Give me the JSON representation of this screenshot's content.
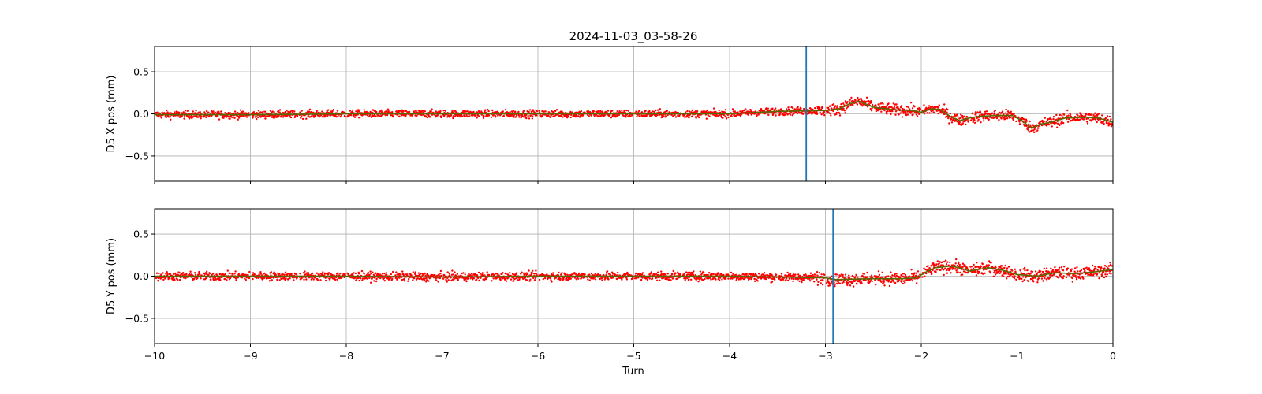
{
  "chart_data": {
    "type": "scatter",
    "title": "2024-11-03_03-58-26",
    "xlabel": "Turn",
    "xlim": [
      -10,
      0
    ],
    "x_ticks": [
      -10,
      -9,
      -8,
      -7,
      -6,
      -5,
      -4,
      -3,
      -2,
      -1,
      0
    ],
    "x_tick_labels": [
      "−10",
      "−9",
      "−8",
      "−7",
      "−6",
      "−5",
      "−4",
      "−3",
      "−2",
      "−1",
      "0"
    ],
    "grid": true,
    "colors": {
      "scatter": "#ff0000",
      "trend": "#556b00",
      "marker_line": "#1f77b4",
      "grid": "#b0b0b0"
    },
    "panels": [
      {
        "ylabel": "D5 X pos (mm)",
        "ylim": [
          -0.8,
          0.8
        ],
        "y_ticks": [
          0.5,
          0.0,
          -0.5
        ],
        "y_tick_labels": [
          "0.5",
          "0.0",
          "−0.5"
        ],
        "vline_x": -3.2,
        "noise": 0.045,
        "trend": [
          [
            -10,
            -0.01
          ],
          [
            -9,
            -0.01
          ],
          [
            -8,
            0.0
          ],
          [
            -7,
            0.0
          ],
          [
            -6,
            0.0
          ],
          [
            -5,
            0.0
          ],
          [
            -4,
            0.0
          ],
          [
            -3.5,
            0.03
          ],
          [
            -3.0,
            0.04
          ],
          [
            -2.85,
            0.06
          ],
          [
            -2.75,
            0.12
          ],
          [
            -2.65,
            0.15
          ],
          [
            -2.5,
            0.08
          ],
          [
            -2.3,
            0.05
          ],
          [
            -2.1,
            0.04
          ],
          [
            -2.0,
            0.02
          ],
          [
            -1.9,
            0.06
          ],
          [
            -1.8,
            0.05
          ],
          [
            -1.7,
            -0.03
          ],
          [
            -1.6,
            -0.08
          ],
          [
            -1.5,
            -0.05
          ],
          [
            -1.4,
            -0.03
          ],
          [
            -1.2,
            -0.02
          ],
          [
            -1.05,
            -0.02
          ],
          [
            -0.95,
            -0.08
          ],
          [
            -0.85,
            -0.17
          ],
          [
            -0.75,
            -0.12
          ],
          [
            -0.65,
            -0.1
          ],
          [
            -0.5,
            -0.05
          ],
          [
            -0.3,
            -0.04
          ],
          [
            -0.15,
            -0.05
          ],
          [
            0,
            -0.1
          ]
        ]
      },
      {
        "ylabel": "D5 Y pos (mm)",
        "ylim": [
          -0.8,
          0.8
        ],
        "y_ticks": [
          0.5,
          0.0,
          -0.5
        ],
        "y_tick_labels": [
          "0.5",
          "0.0",
          "−0.5"
        ],
        "vline_x": -2.92,
        "noise": 0.05,
        "trend": [
          [
            -10,
            0.0
          ],
          [
            -9,
            0.0
          ],
          [
            -8,
            0.0
          ],
          [
            -7,
            -0.01
          ],
          [
            -6,
            0.0
          ],
          [
            -5,
            0.0
          ],
          [
            -4,
            0.0
          ],
          [
            -3.5,
            -0.01
          ],
          [
            -3.0,
            -0.02
          ],
          [
            -2.9,
            -0.04
          ],
          [
            -2.5,
            -0.03
          ],
          [
            -2.2,
            -0.03
          ],
          [
            -2.05,
            -0.02
          ],
          [
            -1.95,
            0.05
          ],
          [
            -1.85,
            0.1
          ],
          [
            -1.7,
            0.12
          ],
          [
            -1.6,
            0.1
          ],
          [
            -1.5,
            0.06
          ],
          [
            -1.3,
            0.1
          ],
          [
            -1.15,
            0.07
          ],
          [
            -1.0,
            0.02
          ],
          [
            -0.8,
            0.0
          ],
          [
            -0.6,
            0.04
          ],
          [
            -0.4,
            0.03
          ],
          [
            -0.2,
            0.05
          ],
          [
            0,
            0.08
          ]
        ]
      }
    ]
  }
}
